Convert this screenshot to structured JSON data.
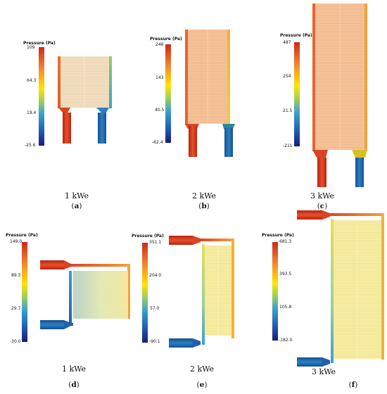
{
  "colors": {
    "scale": [
      "#1a1a7a",
      "#1f5fb0",
      "#3aa0d0",
      "#ffe400",
      "#f2a23a",
      "#e85a28",
      "#cc2a1a"
    ]
  },
  "panels": [
    {
      "id": "a",
      "legend_title": "Pressure (Pa)",
      "ticks": [
        "109",
        "64.3",
        "19.4",
        "-25.6"
      ],
      "caption": "1 kWe",
      "letter": "a"
    },
    {
      "id": "b",
      "legend_title": "Pressure (Pa)",
      "ticks": [
        "246",
        "143",
        "40.5",
        "-62.4"
      ],
      "caption": "2 kWe",
      "letter": "b"
    },
    {
      "id": "c",
      "legend_title": "Pressure (Pa)",
      "ticks": [
        "487",
        "254",
        "21.5",
        "-211"
      ],
      "caption": "3 kWe",
      "letter": "c"
    },
    {
      "id": "d",
      "legend_title": "Pressure (Pa)",
      "ticks": [
        "149.0",
        "89.3",
        "29.7",
        "-30.0"
      ],
      "caption": "1 kWe",
      "letter": "d"
    },
    {
      "id": "e",
      "legend_title": "Pressure (Pa)",
      "ticks": [
        "351.1",
        "204.0",
        "57.0",
        "-90.1"
      ],
      "caption": "2 kWe",
      "letter": "e"
    },
    {
      "id": "f",
      "legend_title": "Pressure (Pa)",
      "ticks": [
        "681.3",
        "393.5",
        "105.8",
        "-182.0"
      ],
      "caption": "3 kWe",
      "letter": "f"
    }
  ]
}
